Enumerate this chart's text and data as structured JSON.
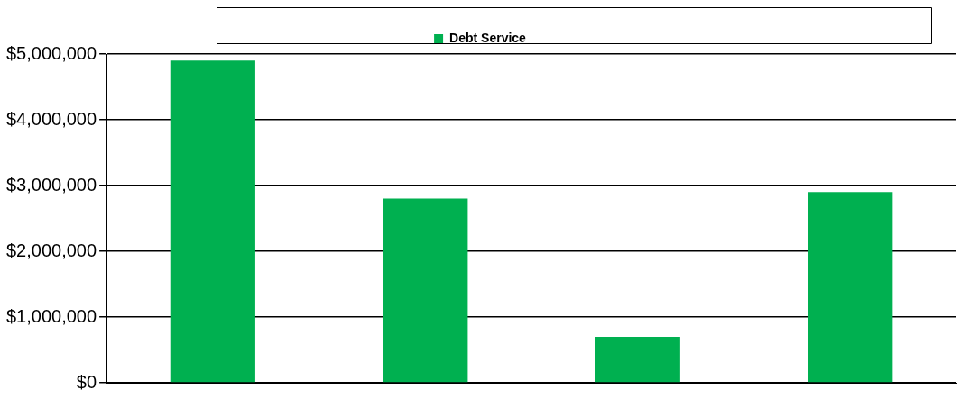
{
  "chart_data": {
    "type": "bar",
    "categories": [
      null,
      null,
      null,
      null
    ],
    "series": [
      {
        "name": "Debt Service",
        "color": "#00b050",
        "values": [
          4900000,
          2800000,
          700000,
          2900000
        ]
      }
    ],
    "ylim": [
      0,
      5000000
    ],
    "yticks": [
      {
        "value": 0,
        "label": "$0"
      },
      {
        "value": 1000000,
        "label": "$1,000,000"
      },
      {
        "value": 2000000,
        "label": "$2,000,000"
      },
      {
        "value": 3000000,
        "label": "$3,000,000"
      },
      {
        "value": 4000000,
        "label": "$4,000,000"
      },
      {
        "value": 5000000,
        "label": "$5,000,000"
      }
    ],
    "grid": "y",
    "legend": "top",
    "tick_labels": "y"
  }
}
